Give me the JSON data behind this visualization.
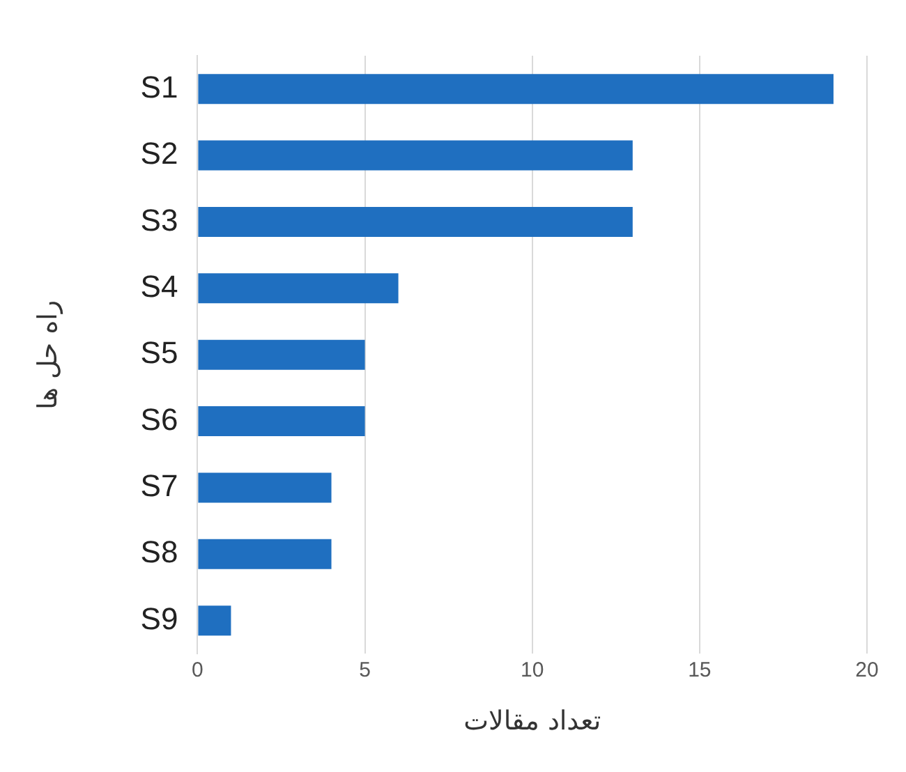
{
  "chart_data": {
    "type": "bar",
    "orientation": "horizontal",
    "xlabel": "تعداد مقالات",
    "ylabel": "راه حل ها",
    "categories": [
      "S1",
      "S2",
      "S3",
      "S4",
      "S5",
      "S6",
      "S7",
      "S8",
      "S9"
    ],
    "values": [
      19,
      13,
      13,
      6,
      5,
      5,
      4,
      4,
      1
    ],
    "color": "#1f6fc0",
    "xlim": [
      0,
      20
    ],
    "xticks": [
      0,
      5,
      10,
      15,
      20
    ],
    "grid": "x",
    "legend": false
  }
}
